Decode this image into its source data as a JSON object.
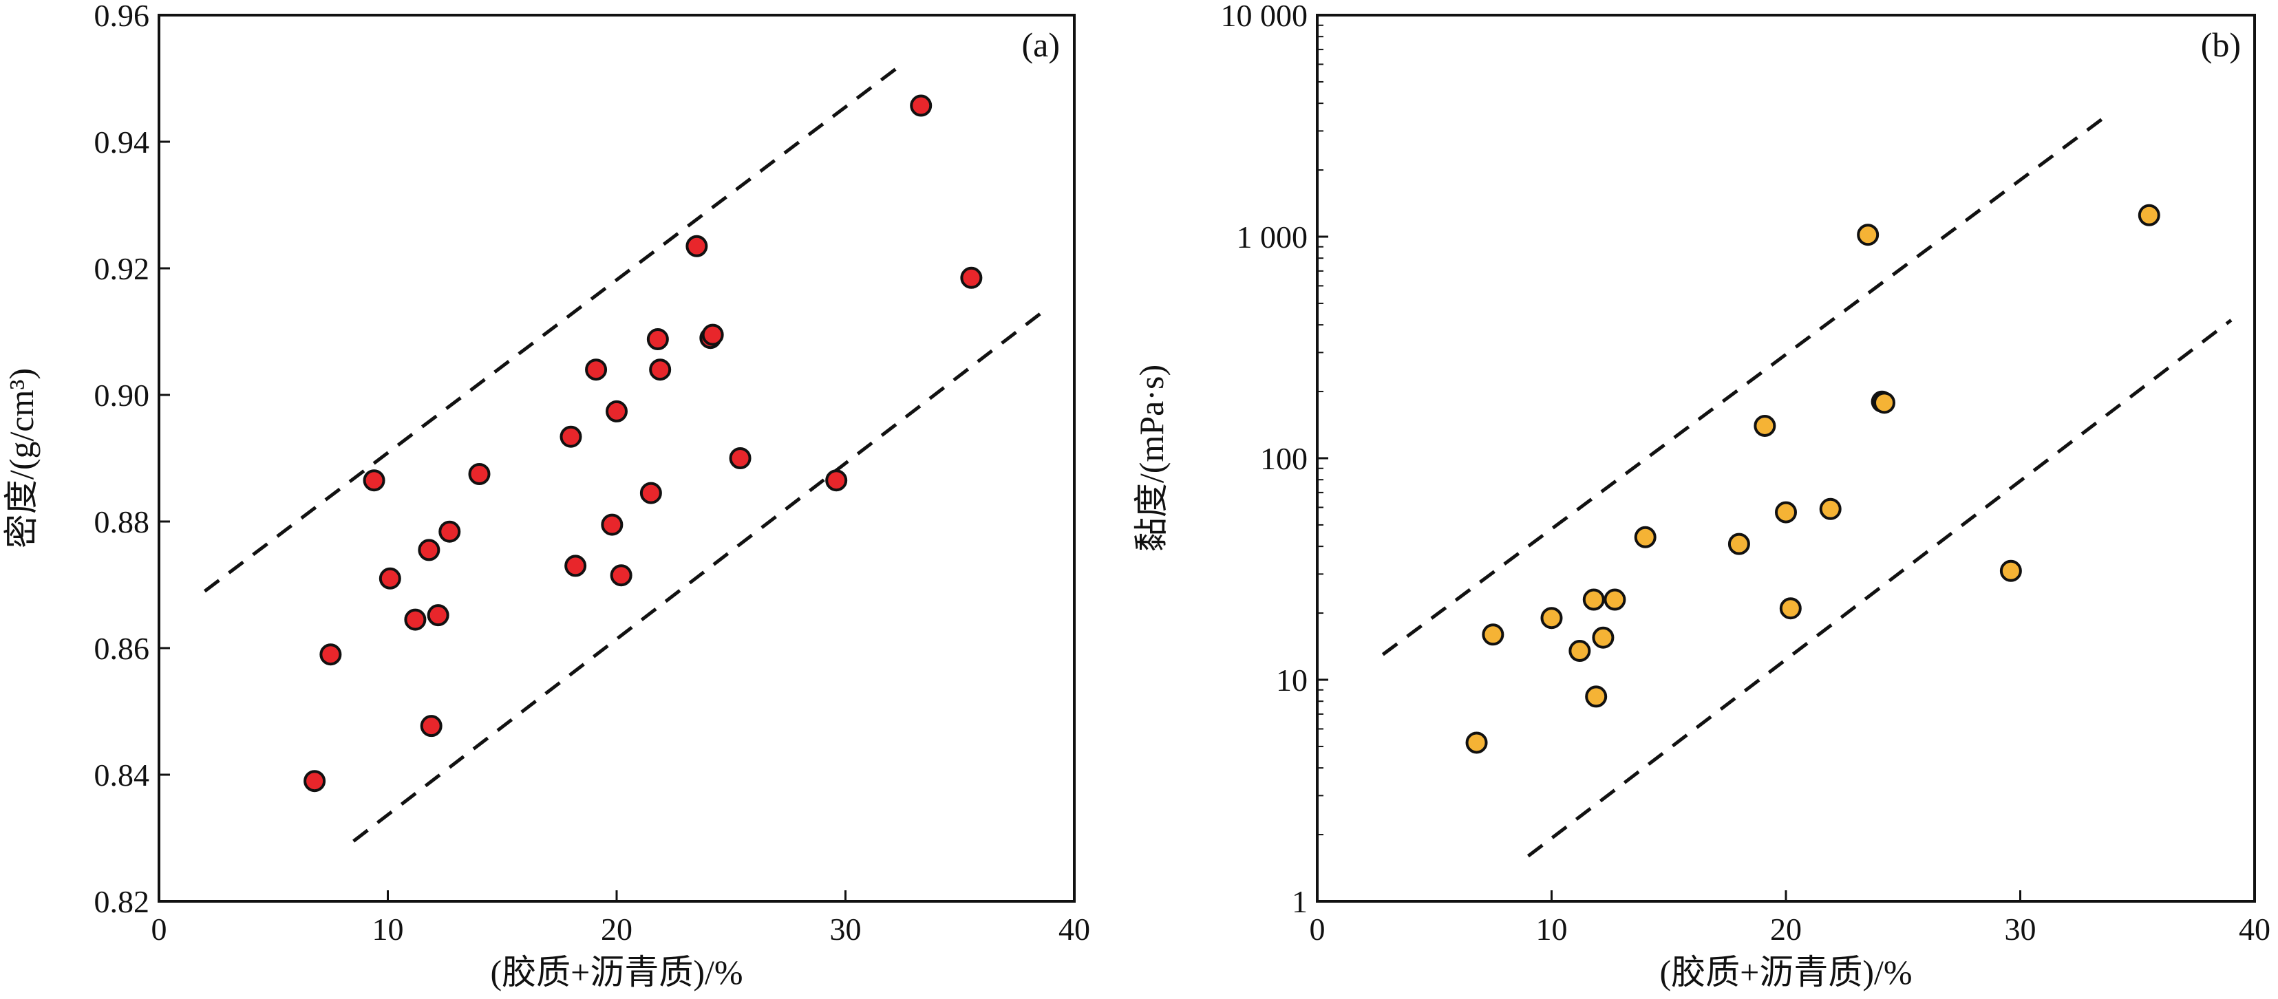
{
  "chart_data": [
    {
      "type": "scatter",
      "panel_label": "(a)",
      "xlabel": "(胶质+沥青质)/%",
      "ylabel": "密度/(g/cm³)",
      "xlim": [
        0,
        40
      ],
      "ylim": [
        0.82,
        0.96
      ],
      "xticks": [
        "0",
        "10",
        "20",
        "30",
        "40"
      ],
      "yticks": [
        "0.82",
        "0.84",
        "0.86",
        "0.88",
        "0.90",
        "0.92",
        "0.94",
        "0.96"
      ],
      "marker_color": "#e8262b",
      "points": [
        {
          "x": 6.8,
          "y": 0.839
        },
        {
          "x": 7.5,
          "y": 0.859
        },
        {
          "x": 9.4,
          "y": 0.8865
        },
        {
          "x": 10.1,
          "y": 0.871
        },
        {
          "x": 11.2,
          "y": 0.8645
        },
        {
          "x": 11.8,
          "y": 0.8755
        },
        {
          "x": 11.9,
          "y": 0.8477
        },
        {
          "x": 12.2,
          "y": 0.8652
        },
        {
          "x": 12.7,
          "y": 0.8784
        },
        {
          "x": 14.0,
          "y": 0.8875
        },
        {
          "x": 18.0,
          "y": 0.8934
        },
        {
          "x": 18.2,
          "y": 0.873
        },
        {
          "x": 19.1,
          "y": 0.904
        },
        {
          "x": 19.8,
          "y": 0.8795
        },
        {
          "x": 20.0,
          "y": 0.8974
        },
        {
          "x": 20.2,
          "y": 0.8715
        },
        {
          "x": 21.5,
          "y": 0.8845
        },
        {
          "x": 21.8,
          "y": 0.9088
        },
        {
          "x": 21.9,
          "y": 0.904
        },
        {
          "x": 23.5,
          "y": 0.9235
        },
        {
          "x": 24.1,
          "y": 0.909
        },
        {
          "x": 24.2,
          "y": 0.9095
        },
        {
          "x": 25.4,
          "y": 0.89
        },
        {
          "x": 29.6,
          "y": 0.8865
        },
        {
          "x": 33.3,
          "y": 0.9457
        },
        {
          "x": 35.5,
          "y": 0.9185
        }
      ],
      "bounds": [
        {
          "x0": 2,
          "y0": 0.869,
          "x1": 32.2,
          "y1": 0.9515
        },
        {
          "x0": 8.5,
          "y0": 0.8295,
          "x1": 38.5,
          "y1": 0.9128
        }
      ],
      "grid": false,
      "legend": "none"
    },
    {
      "type": "scatter",
      "panel_label": "(b)",
      "xlabel": "(胶质+沥青质)/%",
      "ylabel": "黏度/(mPa·s)",
      "xlim": [
        0,
        40
      ],
      "ylim": [
        1,
        10000
      ],
      "yscale": "log",
      "xticks": [
        "0",
        "10",
        "20",
        "30",
        "40"
      ],
      "yticks": [
        {
          "value": 1,
          "label": "1"
        },
        {
          "value": 10,
          "label": "10"
        },
        {
          "value": 100,
          "label": "100"
        },
        {
          "value": 1000,
          "label": "1 000"
        },
        {
          "value": 10000,
          "label": "10 000"
        }
      ],
      "marker_color": "#f5b335",
      "points": [
        {
          "x": 6.8,
          "y": 5.2
        },
        {
          "x": 7.5,
          "y": 16
        },
        {
          "x": 10.0,
          "y": 19
        },
        {
          "x": 11.2,
          "y": 13.5
        },
        {
          "x": 11.8,
          "y": 23
        },
        {
          "x": 11.9,
          "y": 8.4
        },
        {
          "x": 12.2,
          "y": 15.5
        },
        {
          "x": 12.7,
          "y": 23
        },
        {
          "x": 14.0,
          "y": 44
        },
        {
          "x": 18.0,
          "y": 41
        },
        {
          "x": 19.1,
          "y": 140
        },
        {
          "x": 20.0,
          "y": 57
        },
        {
          "x": 20.2,
          "y": 21
        },
        {
          "x": 21.9,
          "y": 59
        },
        {
          "x": 23.5,
          "y": 1020
        },
        {
          "x": 24.1,
          "y": 180
        },
        {
          "x": 24.2,
          "y": 178
        },
        {
          "x": 29.6,
          "y": 31
        },
        {
          "x": 35.5,
          "y": 1250
        }
      ],
      "bounds": [
        {
          "x0": 2.8,
          "y0": 13,
          "x1": 33.5,
          "y1": 3400
        },
        {
          "x0": 9.0,
          "y0": 1.6,
          "x1": 39.0,
          "y1": 420
        }
      ],
      "grid": false,
      "legend": "none"
    }
  ]
}
